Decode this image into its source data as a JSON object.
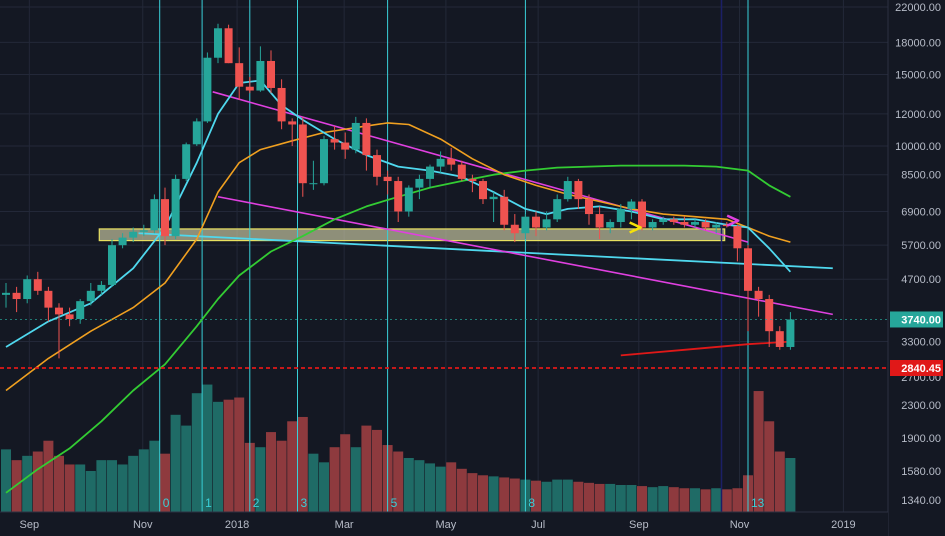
{
  "colors": {
    "background": "#141823",
    "grid": "#232838",
    "candle_up": "#26a69a",
    "candle_down": "#ef5350",
    "vol_up": "#1f6b66",
    "vol_down": "#8e3a3e",
    "cycle_lines": "#39d0d8",
    "ma_cyan": "#4fd8ee",
    "ma_orange": "#f0a020",
    "ma_green": "#33cc33",
    "ma_red": "#e01818",
    "trend_magenta": "#e040e0",
    "trend_cyan": "#4fd8ee",
    "support_zone_fill": "#cfcfa8",
    "support_zone_border": "#e8e060",
    "dashed_support": "#e01818",
    "price_badge": "#26a69a",
    "support_badge": "#e01818",
    "arrow_yellow": "#f5e10a",
    "arrow_magenta": "#e040e0",
    "nav_vline": "#1b1f66"
  },
  "price_axis": {
    "ticks": [
      "22000.00",
      "18000.00",
      "15000.00",
      "12000.00",
      "10000.00",
      "8500.00",
      "6900.00",
      "5700.00",
      "4700.00",
      "3300.00",
      "2700.00",
      "2300.00",
      "1900.00",
      "1580.00",
      "1340.00"
    ],
    "current_price": "3740.00",
    "support_label": "2840.45"
  },
  "time_axis": {
    "labels": [
      "Sep",
      "Nov",
      "2018",
      "Mar",
      "May",
      "Jul",
      "Sep",
      "Nov",
      "2019"
    ]
  },
  "cycle_markers": [
    "0",
    "1",
    "2",
    "3",
    "5",
    "8",
    "13"
  ],
  "chart_data": {
    "type": "candlestick",
    "timeframe": "weekly",
    "yscale": "log",
    "ylim": [
      1200,
      22500
    ],
    "candles_ohlc": [
      [
        4300,
        4600,
        4000,
        4350
      ],
      [
        4350,
        4500,
        3900,
        4200
      ],
      [
        4200,
        4800,
        4100,
        4700
      ],
      [
        4700,
        4900,
        4300,
        4400
      ],
      [
        4400,
        4500,
        3700,
        4000
      ],
      [
        4000,
        4100,
        3000,
        3850
      ],
      [
        3850,
        4000,
        3600,
        3750
      ],
      [
        3750,
        4200,
        3650,
        4150
      ],
      [
        4150,
        4600,
        4050,
        4400
      ],
      [
        4400,
        4650,
        4300,
        4550
      ],
      [
        4550,
        5900,
        4500,
        5700
      ],
      [
        5700,
        6100,
        5600,
        5950
      ],
      [
        5950,
        6300,
        5800,
        6150
      ],
      [
        6150,
        6400,
        6000,
        6200
      ],
      [
        6200,
        7600,
        6100,
        7400
      ],
      [
        7400,
        7900,
        5700,
        6000
      ],
      [
        6000,
        8500,
        5900,
        8300
      ],
      [
        8300,
        10200,
        8200,
        10100
      ],
      [
        10100,
        11700,
        10000,
        11500
      ],
      [
        11500,
        17000,
        11400,
        16500
      ],
      [
        16500,
        20000,
        16000,
        19500
      ],
      [
        19500,
        19900,
        16000,
        16000
      ],
      [
        16000,
        17500,
        13000,
        14000
      ],
      [
        14000,
        14800,
        13500,
        13700
      ],
      [
        13700,
        17600,
        13600,
        16200
      ],
      [
        16200,
        17200,
        13500,
        13900
      ],
      [
        13900,
        14600,
        11000,
        11500
      ],
      [
        11500,
        11700,
        10000,
        11300
      ],
      [
        11300,
        11800,
        7500,
        8100
      ],
      [
        8100,
        9200,
        7800,
        8100
      ],
      [
        8100,
        10600,
        8000,
        10400
      ],
      [
        10400,
        11200,
        9800,
        10200
      ],
      [
        10200,
        10800,
        9300,
        9800
      ],
      [
        9800,
        11800,
        9600,
        11400
      ],
      [
        11400,
        11700,
        8700,
        9500
      ],
      [
        9500,
        9800,
        8000,
        8400
      ],
      [
        8400,
        8700,
        7600,
        8200
      ],
      [
        8200,
        8400,
        6500,
        6900
      ],
      [
        6900,
        8000,
        6700,
        7900
      ],
      [
        7900,
        8500,
        7400,
        8300
      ],
      [
        8300,
        9000,
        7900,
        8900
      ],
      [
        8900,
        9700,
        8600,
        9300
      ],
      [
        9300,
        9900,
        8700,
        9000
      ],
      [
        9000,
        9200,
        8200,
        8300
      ],
      [
        8300,
        8500,
        7700,
        8200
      ],
      [
        8200,
        8300,
        7200,
        7400
      ],
      [
        7400,
        7700,
        6500,
        7500
      ],
      [
        7500,
        7800,
        6200,
        6400
      ],
      [
        6400,
        6800,
        5800,
        6100
      ],
      [
        6100,
        6800,
        5900,
        6700
      ],
      [
        6700,
        6900,
        6000,
        6300
      ],
      [
        6300,
        6900,
        6200,
        6600
      ],
      [
        6600,
        7600,
        6500,
        7400
      ],
      [
        7400,
        8400,
        7300,
        8200
      ],
      [
        8200,
        8300,
        7000,
        7400
      ],
      [
        7400,
        7600,
        6400,
        6800
      ],
      [
        6800,
        7100,
        5900,
        6300
      ],
      [
        6300,
        6600,
        6100,
        6500
      ],
      [
        6500,
        7200,
        6300,
        7000
      ],
      [
        7000,
        7400,
        6600,
        7300
      ],
      [
        7300,
        7400,
        6200,
        6300
      ],
      [
        6300,
        6600,
        6200,
        6500
      ],
      [
        6500,
        6700,
        6400,
        6600
      ],
      [
        6600,
        6700,
        6400,
        6500
      ],
      [
        6500,
        6700,
        6300,
        6400
      ],
      [
        6400,
        6600,
        6300,
        6500
      ],
      [
        6500,
        6600,
        6200,
        6300
      ],
      [
        6300,
        6500,
        6100,
        6400
      ],
      [
        6400,
        6500,
        6300,
        6350
      ],
      [
        6350,
        6400,
        5200,
        5600
      ],
      [
        5600,
        5700,
        3500,
        4400
      ],
      [
        4400,
        4500,
        3800,
        4200
      ],
      [
        4200,
        4300,
        3200,
        3500
      ],
      [
        3500,
        3600,
        3150,
        3200
      ],
      [
        3200,
        3900,
        3150,
        3740
      ]
    ],
    "volume": [
      58,
      48,
      52,
      56,
      66,
      52,
      44,
      44,
      38,
      48,
      48,
      44,
      52,
      58,
      66,
      54,
      90,
      80,
      110,
      118,
      102,
      104,
      106,
      64,
      60,
      74,
      66,
      84,
      88,
      54,
      46,
      60,
      72,
      60,
      80,
      76,
      62,
      56,
      50,
      48,
      45,
      42,
      46,
      40,
      36,
      34,
      33,
      32,
      31,
      30,
      29,
      28,
      30,
      30,
      28,
      27,
      26,
      26,
      25,
      25,
      24,
      23,
      24,
      23,
      22,
      22,
      21,
      22,
      21,
      22,
      34,
      112,
      84,
      56,
      50
    ],
    "ma_cyan": [
      [
        0,
        3200
      ],
      [
        4,
        3700
      ],
      [
        8,
        4100
      ],
      [
        12,
        5000
      ],
      [
        15,
        6300
      ],
      [
        18,
        9100
      ],
      [
        20,
        12000
      ],
      [
        22,
        14300
      ],
      [
        24,
        14500
      ],
      [
        26,
        12600
      ],
      [
        28,
        11600
      ],
      [
        31,
        10400
      ],
      [
        34,
        9500
      ],
      [
        37,
        8900
      ],
      [
        40,
        8700
      ],
      [
        43,
        8400
      ],
      [
        46,
        7700
      ],
      [
        49,
        7000
      ],
      [
        51,
        6800
      ],
      [
        53,
        7000
      ],
      [
        56,
        7100
      ],
      [
        59,
        6900
      ],
      [
        62,
        6600
      ],
      [
        65,
        6600
      ],
      [
        68,
        6400
      ],
      [
        70,
        6300
      ],
      [
        72,
        5600
      ],
      [
        74,
        4900
      ]
    ],
    "ma_orange": [
      [
        0,
        2500
      ],
      [
        4,
        3000
      ],
      [
        8,
        3500
      ],
      [
        12,
        4000
      ],
      [
        15,
        4600
      ],
      [
        18,
        5900
      ],
      [
        20,
        7700
      ],
      [
        22,
        9100
      ],
      [
        24,
        9800
      ],
      [
        27,
        10300
      ],
      [
        30,
        10800
      ],
      [
        33,
        11100
      ],
      [
        36,
        11400
      ],
      [
        38,
        11300
      ],
      [
        41,
        10400
      ],
      [
        44,
        9300
      ],
      [
        47,
        8500
      ],
      [
        50,
        8000
      ],
      [
        53,
        7600
      ],
      [
        56,
        7300
      ],
      [
        59,
        7000
      ],
      [
        62,
        6800
      ],
      [
        65,
        6700
      ],
      [
        68,
        6600
      ],
      [
        70,
        6300
      ],
      [
        72,
        6000
      ],
      [
        74,
        5800
      ]
    ],
    "ma_green": [
      [
        0,
        1400
      ],
      [
        3,
        1600
      ],
      [
        6,
        1800
      ],
      [
        9,
        2100
      ],
      [
        12,
        2500
      ],
      [
        15,
        2900
      ],
      [
        18,
        3600
      ],
      [
        20,
        4200
      ],
      [
        22,
        4800
      ],
      [
        25,
        5500
      ],
      [
        28,
        6000
      ],
      [
        31,
        6600
      ],
      [
        34,
        7100
      ],
      [
        37,
        7500
      ],
      [
        40,
        7900
      ],
      [
        43,
        8200
      ],
      [
        46,
        8500
      ],
      [
        49,
        8700
      ],
      [
        52,
        8850
      ],
      [
        55,
        8900
      ],
      [
        58,
        8950
      ],
      [
        61,
        8950
      ],
      [
        64,
        8950
      ],
      [
        67,
        8900
      ],
      [
        70,
        8700
      ],
      [
        72,
        8000
      ],
      [
        74,
        7500
      ]
    ],
    "ma_red": [
      [
        58,
        3050
      ],
      [
        64,
        3150
      ],
      [
        70,
        3250
      ],
      [
        74,
        3300
      ]
    ],
    "trend_magenta_upper": [
      [
        19.5,
        13600
      ],
      [
        70,
        5800
      ]
    ],
    "trend_magenta_lower": [
      [
        20,
        7500
      ],
      [
        78,
        3850
      ]
    ],
    "trend_cyan": [
      [
        12.5,
        6100
      ],
      [
        78,
        5000
      ]
    ],
    "support_zone": {
      "from_index": 8.8,
      "to_index": 67.8,
      "low": 5850,
      "high": 6250
    },
    "dashed_support_level": 2840.45,
    "cycle_line_indices": [
      14.5,
      18.5,
      23,
      27.5,
      36,
      49,
      70
    ],
    "nav_vline_index": 67.5,
    "arrows": [
      {
        "index": 59.4,
        "price": 6300,
        "color": "yellow"
      },
      {
        "index": 68.6,
        "price": 6550,
        "color": "magenta"
      }
    ]
  }
}
